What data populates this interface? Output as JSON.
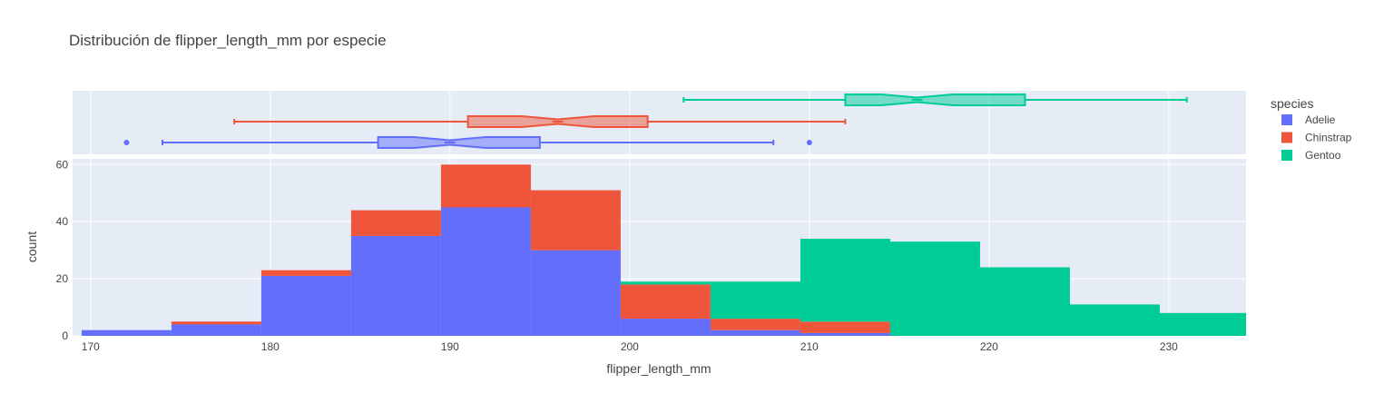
{
  "chart_data": {
    "type": "histogram",
    "title": "Distribución de flipper_length_mm por especie",
    "xlabel": "flipper_length_mm",
    "ylabel": "count",
    "xlim": [
      169,
      234.3
    ],
    "ylim": [
      0,
      62
    ],
    "x_ticks": [
      170,
      180,
      190,
      200,
      210,
      220,
      230
    ],
    "y_ticks": [
      0,
      20,
      40,
      60
    ],
    "barmode": "stack",
    "bin_edges": [
      169.5,
      174.5,
      179.5,
      184.5,
      189.5,
      194.5,
      199.5,
      204.5,
      209.5,
      214.5,
      219.5,
      224.5,
      229.5,
      234.5
    ],
    "legend": {
      "title": "species",
      "position": "top-right"
    },
    "series": [
      {
        "name": "Adelie",
        "color": "#636efa",
        "counts": [
          2,
          4,
          21,
          35,
          45,
          30,
          6,
          2,
          1,
          0,
          0,
          0,
          0
        ]
      },
      {
        "name": "Chinstrap",
        "color": "#ef553b",
        "counts": [
          0,
          1,
          2,
          9,
          15,
          21,
          12,
          4,
          4,
          0,
          0,
          0,
          0
        ]
      },
      {
        "name": "Gentoo",
        "color": "#00cc96",
        "counts": [
          0,
          0,
          0,
          0,
          0,
          0,
          1,
          13,
          29,
          33,
          24,
          11,
          8
        ]
      }
    ],
    "marginal": {
      "type": "box",
      "notched": true,
      "boxes": [
        {
          "name": "Adelie",
          "min": 174,
          "q1": 186,
          "median": 190,
          "q3": 195,
          "max": 208,
          "outliers": [
            172,
            210
          ]
        },
        {
          "name": "Chinstrap",
          "min": 178,
          "q1": 191,
          "median": 196,
          "q3": 201,
          "max": 212,
          "outliers": []
        },
        {
          "name": "Gentoo",
          "min": 203,
          "q1": 212,
          "median": 216,
          "q3": 222,
          "max": 231,
          "outliers": []
        }
      ]
    },
    "grid": true
  }
}
